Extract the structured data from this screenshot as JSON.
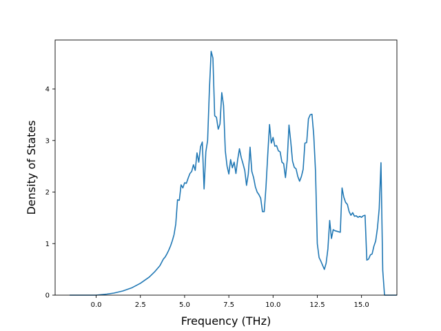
{
  "chart_data": {
    "type": "line",
    "title": "",
    "xlabel": "Frequency (THz)",
    "ylabel": "Density of States",
    "xlim": [
      -2.32,
      17.0
    ],
    "ylim": [
      0,
      4.95
    ],
    "x_ticks": [
      0.0,
      2.5,
      5.0,
      7.5,
      10.0,
      12.5,
      15.0
    ],
    "x_tick_labels": [
      "0.0",
      "2.5",
      "5.0",
      "7.5",
      "10.0",
      "12.5",
      "15.0"
    ],
    "y_ticks": [
      0,
      1,
      2,
      3,
      4
    ],
    "y_tick_labels": [
      "0",
      "1",
      "2",
      "3",
      "4"
    ],
    "grid": false,
    "legend": "none",
    "series": [
      {
        "color": "#1f77b4",
        "points": [
          [
            -1.5,
            0.0
          ],
          [
            0.0,
            0.0
          ],
          [
            0.3,
            0.01
          ],
          [
            0.6,
            0.02
          ],
          [
            1.0,
            0.04
          ],
          [
            1.5,
            0.08
          ],
          [
            2.0,
            0.14
          ],
          [
            2.5,
            0.23
          ],
          [
            3.0,
            0.35
          ],
          [
            3.3,
            0.45
          ],
          [
            3.6,
            0.57
          ],
          [
            3.8,
            0.7
          ],
          [
            3.9,
            0.74
          ],
          [
            4.0,
            0.8
          ],
          [
            4.1,
            0.87
          ],
          [
            4.2,
            0.95
          ],
          [
            4.3,
            1.05
          ],
          [
            4.4,
            1.17
          ],
          [
            4.5,
            1.38
          ],
          [
            4.6,
            1.85
          ],
          [
            4.7,
            1.84
          ],
          [
            4.8,
            2.14
          ],
          [
            4.9,
            2.08
          ],
          [
            5.0,
            2.18
          ],
          [
            5.1,
            2.17
          ],
          [
            5.2,
            2.27
          ],
          [
            5.3,
            2.36
          ],
          [
            5.4,
            2.4
          ],
          [
            5.5,
            2.53
          ],
          [
            5.6,
            2.42
          ],
          [
            5.7,
            2.76
          ],
          [
            5.8,
            2.58
          ],
          [
            5.9,
            2.88
          ],
          [
            6.0,
            2.97
          ],
          [
            6.1,
            2.06
          ],
          [
            6.2,
            2.78
          ],
          [
            6.3,
            3.0
          ],
          [
            6.4,
            3.98
          ],
          [
            6.5,
            4.73
          ],
          [
            6.6,
            4.6
          ],
          [
            6.7,
            3.48
          ],
          [
            6.8,
            3.45
          ],
          [
            6.9,
            3.22
          ],
          [
            7.0,
            3.32
          ],
          [
            7.1,
            3.93
          ],
          [
            7.2,
            3.68
          ],
          [
            7.3,
            2.8
          ],
          [
            7.4,
            2.5
          ],
          [
            7.5,
            2.35
          ],
          [
            7.6,
            2.63
          ],
          [
            7.7,
            2.47
          ],
          [
            7.8,
            2.58
          ],
          [
            7.9,
            2.36
          ],
          [
            8.0,
            2.63
          ],
          [
            8.1,
            2.84
          ],
          [
            8.2,
            2.67
          ],
          [
            8.3,
            2.55
          ],
          [
            8.4,
            2.42
          ],
          [
            8.5,
            2.13
          ],
          [
            8.6,
            2.35
          ],
          [
            8.7,
            2.87
          ],
          [
            8.8,
            2.4
          ],
          [
            8.9,
            2.28
          ],
          [
            9.0,
            2.1
          ],
          [
            9.1,
            2.0
          ],
          [
            9.2,
            1.95
          ],
          [
            9.3,
            1.88
          ],
          [
            9.4,
            1.62
          ],
          [
            9.5,
            1.62
          ],
          [
            9.6,
            2.1
          ],
          [
            9.7,
            2.73
          ],
          [
            9.8,
            3.31
          ],
          [
            9.9,
            2.95
          ],
          [
            10.0,
            3.06
          ],
          [
            10.1,
            2.89
          ],
          [
            10.2,
            2.9
          ],
          [
            10.3,
            2.8
          ],
          [
            10.4,
            2.78
          ],
          [
            10.5,
            2.58
          ],
          [
            10.6,
            2.55
          ],
          [
            10.7,
            2.28
          ],
          [
            10.8,
            2.62
          ],
          [
            10.9,
            3.3
          ],
          [
            11.0,
            2.98
          ],
          [
            11.1,
            2.6
          ],
          [
            11.2,
            2.48
          ],
          [
            11.3,
            2.45
          ],
          [
            11.4,
            2.3
          ],
          [
            11.5,
            2.21
          ],
          [
            11.6,
            2.3
          ],
          [
            11.7,
            2.44
          ],
          [
            11.8,
            2.95
          ],
          [
            11.9,
            2.96
          ],
          [
            12.0,
            3.42
          ],
          [
            12.1,
            3.5
          ],
          [
            12.2,
            3.51
          ],
          [
            12.3,
            3.1
          ],
          [
            12.4,
            2.4
          ],
          [
            12.5,
            1.0
          ],
          [
            12.6,
            0.73
          ],
          [
            12.7,
            0.66
          ],
          [
            12.8,
            0.58
          ],
          [
            12.9,
            0.5
          ],
          [
            13.0,
            0.62
          ],
          [
            13.1,
            0.9
          ],
          [
            13.2,
            1.45
          ],
          [
            13.3,
            1.1
          ],
          [
            13.4,
            1.27
          ],
          [
            13.5,
            1.25
          ],
          [
            13.6,
            1.24
          ],
          [
            13.7,
            1.23
          ],
          [
            13.8,
            1.22
          ],
          [
            13.9,
            2.08
          ],
          [
            14.0,
            1.9
          ],
          [
            14.1,
            1.8
          ],
          [
            14.2,
            1.76
          ],
          [
            14.3,
            1.62
          ],
          [
            14.4,
            1.55
          ],
          [
            14.5,
            1.6
          ],
          [
            14.6,
            1.53
          ],
          [
            14.7,
            1.54
          ],
          [
            14.8,
            1.51
          ],
          [
            14.9,
            1.53
          ],
          [
            15.0,
            1.51
          ],
          [
            15.1,
            1.54
          ],
          [
            15.2,
            1.55
          ],
          [
            15.3,
            0.68
          ],
          [
            15.4,
            0.7
          ],
          [
            15.5,
            0.78
          ],
          [
            15.6,
            0.8
          ],
          [
            15.7,
            0.95
          ],
          [
            15.8,
            1.05
          ],
          [
            15.9,
            1.3
          ],
          [
            16.0,
            1.68
          ],
          [
            16.1,
            2.57
          ],
          [
            16.2,
            0.48
          ],
          [
            16.3,
            0.0
          ],
          [
            16.5,
            0.0
          ],
          [
            17.0,
            0.0
          ]
        ]
      }
    ]
  }
}
